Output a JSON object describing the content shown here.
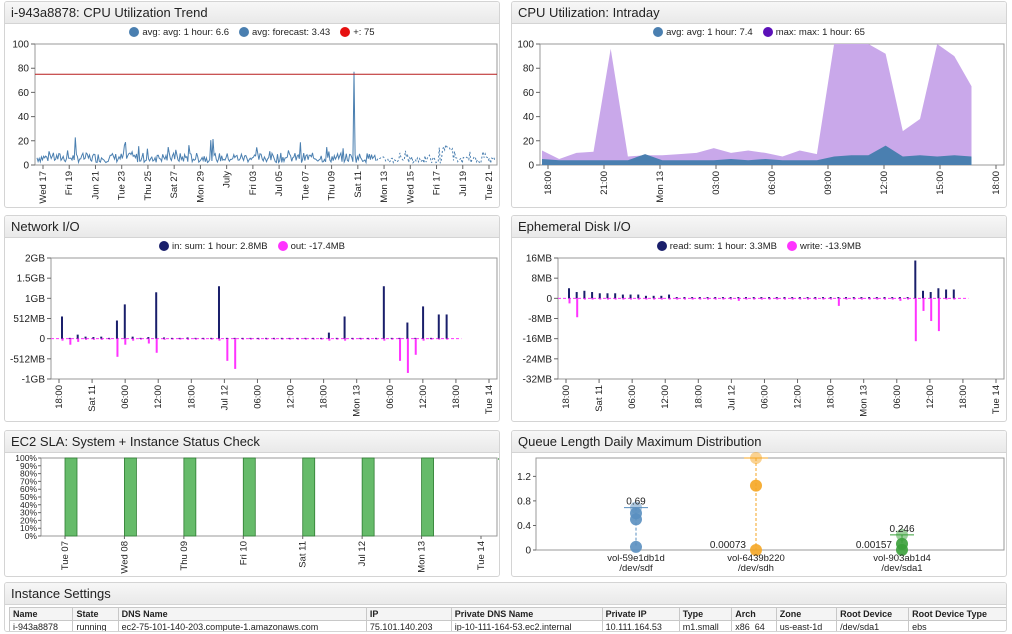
{
  "colors": {
    "blue": "#4a7fb0",
    "purple": "#5b10b8",
    "lilac": "#c9a8ea",
    "red": "#e61111",
    "navy": "#1a1f6b",
    "magenta": "#ff33ff",
    "green": "#66bb6a",
    "green_dark": "#2e7d32",
    "orange": "#f5a623",
    "steel": "#5a8fc0"
  },
  "panels": {
    "cpu_trend": {
      "title": "i-943a8878: CPU Utilization Trend",
      "legend": [
        {
          "label": "avg: avg: 1 hour: 6.6",
          "color": "#4a7fb0"
        },
        {
          "label": "avg: forecast: 3.43",
          "color": "#4a7fb0"
        },
        {
          "label": "+: 75",
          "color": "#e61111"
        }
      ],
      "threshold_badge": "75",
      "value_badge": "6.6"
    },
    "cpu_intraday": {
      "title": "CPU Utilization: Intraday",
      "legend": [
        {
          "label": "avg: avg: 1 hour: 7.4",
          "color": "#4a7fb0"
        },
        {
          "label": "max: max: 1 hour: 65",
          "color": "#5b10b8"
        }
      ]
    },
    "network": {
      "title": "Network I/O",
      "legend": [
        {
          "label": "in: sum: 1 hour: 2.8MB",
          "color": "#1a1f6b"
        },
        {
          "label": "out: -17.4MB",
          "color": "#ff33ff"
        }
      ]
    },
    "disk": {
      "title": "Ephemeral Disk I/O",
      "legend": [
        {
          "label": "read: sum: 1 hour: 3.3MB",
          "color": "#1a1f6b"
        },
        {
          "label": "write: -13.9MB",
          "color": "#ff33ff"
        }
      ]
    },
    "sla": {
      "title": "EC2 SLA: System + Instance Status Check",
      "badge": "100%"
    },
    "queue": {
      "title": "Queue Length Daily Maximum Distribution"
    },
    "instance": {
      "title": "Instance Settings",
      "columns": [
        "Name",
        "State",
        "DNS Name",
        "IP",
        "Private DNS Name",
        "Private IP",
        "Type",
        "Arch",
        "Zone",
        "Root Device",
        "Root Device Type"
      ],
      "rows": [
        [
          "i-943a8878",
          "running",
          "ec2-75-101-140-203.compute-1.amazonaws.com",
          "75.101.140.203",
          "ip-10-111-164-53.ec2.internal",
          "10.111.164.53",
          "m1.small",
          "x86_64",
          "us-east-1d",
          "/dev/sda1",
          "ebs"
        ]
      ]
    }
  },
  "chart_data": [
    {
      "type": "line",
      "title": "i-943a8878: CPU Utilization Trend",
      "x_ticks": [
        "Wed 17",
        "Fri 19",
        "Jun 21",
        "Tue 23",
        "Thu 25",
        "Sat 27",
        "Mon 29",
        "July",
        "Fri 03",
        "Jul 05",
        "Tue 07",
        "Thu 09",
        "Sat 11",
        "Mon 13",
        "Wed 15",
        "Fri 17",
        "Jul 19",
        "Tue 21"
      ],
      "y_ticks": [
        0,
        20,
        40,
        60,
        80,
        100
      ],
      "ylim": [
        0,
        100
      ],
      "threshold": 75,
      "series": [
        {
          "name": "avg: avg: 1 hour",
          "approx": "mostly 2-12 with spikes to ~25, single spike ~77 near Thu 09"
        },
        {
          "name": "avg: forecast",
          "approx": "dashed 2-10 from Thu 09 to Tue 21"
        }
      ]
    },
    {
      "type": "area",
      "title": "CPU Utilization: Intraday",
      "x_ticks": [
        "18:00",
        "21:00",
        "Mon 13",
        "03:00",
        "06:00",
        "09:00",
        "12:00",
        "15:00",
        "18:00"
      ],
      "y_ticks": [
        0,
        20,
        40,
        60,
        80,
        100
      ],
      "ylim": [
        0,
        100
      ],
      "series": [
        {
          "name": "max: max: 1 hour",
          "values": [
            12,
            5,
            10,
            11,
            96,
            7,
            8,
            8,
            9,
            10,
            14,
            10,
            12,
            10,
            7,
            12,
            9,
            100,
            100,
            100,
            92,
            28,
            38,
            100,
            90,
            65
          ]
        },
        {
          "name": "avg: avg: 1 hour",
          "values": [
            5,
            4,
            4,
            4,
            4,
            4,
            9,
            4,
            4,
            4,
            4,
            5,
            4,
            5,
            4,
            4,
            4,
            7,
            8,
            8,
            16,
            7,
            8,
            7,
            8,
            7
          ]
        }
      ]
    },
    {
      "type": "bar",
      "title": "Network I/O",
      "x_ticks": [
        "18:00",
        "Sat 11",
        "06:00",
        "12:00",
        "18:00",
        "Jul 12",
        "06:00",
        "12:00",
        "18:00",
        "Mon 13",
        "06:00",
        "12:00",
        "18:00",
        "Tue 14"
      ],
      "y_ticks": [
        "2GB",
        "1.5GB",
        "1GB",
        "512MB",
        "0",
        "-512MB",
        "-1GB"
      ],
      "ylim_gb": [
        -1,
        2
      ],
      "series": [
        {
          "name": "in",
          "values_gb": [
            0.55,
            0.02,
            0.1,
            0.05,
            0.04,
            0.05,
            0.02,
            0.45,
            0.85,
            0.05,
            0.02,
            0.04,
            1.15,
            0.03,
            0.02,
            0.02,
            0.03,
            0.02,
            0.02,
            0.02,
            1.3,
            0.02,
            0.02,
            0.02,
            0.02,
            0.02,
            0.02,
            0.02,
            0.02,
            0.02,
            0.02,
            0.02,
            0.02,
            0.02,
            0.15,
            0.02,
            0.55,
            0.02,
            0.02,
            0.02,
            0.02,
            1.3,
            0.02,
            0.02,
            0.4,
            0.02,
            0.8,
            0.02,
            0.6,
            0.6
          ]
        },
        {
          "name": "out",
          "values_gb": [
            -0.05,
            -0.15,
            -0.08,
            -0.03,
            -0.03,
            -0.03,
            -0.02,
            -0.45,
            -0.15,
            -0.05,
            -0.02,
            -0.12,
            -0.35,
            -0.03,
            -0.02,
            -0.02,
            -0.03,
            -0.02,
            -0.02,
            -0.02,
            -0.05,
            -0.55,
            -0.75,
            -0.02,
            -0.02,
            -0.02,
            -0.02,
            -0.02,
            -0.02,
            -0.02,
            -0.02,
            -0.02,
            -0.02,
            -0.02,
            -0.05,
            -0.02,
            -0.05,
            -0.02,
            -0.02,
            -0.02,
            -0.02,
            -0.05,
            -0.02,
            -0.55,
            -0.85,
            -0.4,
            -0.05,
            -0.02,
            -0.02,
            -0.02
          ]
        }
      ]
    },
    {
      "type": "bar",
      "title": "Ephemeral Disk I/O",
      "x_ticks": [
        "18:00",
        "Sat 11",
        "06:00",
        "12:00",
        "18:00",
        "Jul 12",
        "06:00",
        "12:00",
        "18:00",
        "Mon 13",
        "06:00",
        "12:00",
        "18:00",
        "Tue 14"
      ],
      "y_ticks": [
        "16MB",
        "8MB",
        "0",
        "-8MB",
        "-16MB",
        "-24MB",
        "-32MB"
      ],
      "ylim_mb": [
        -32,
        16
      ],
      "series": [
        {
          "name": "read",
          "values_mb": [
            4,
            2.5,
            3,
            2.5,
            2,
            2,
            2,
            1.5,
            1.5,
            1.5,
            1,
            1,
            1,
            1.5,
            0.5,
            0.5,
            0.5,
            0.5,
            0.5,
            0.5,
            0.5,
            0.5,
            0.5,
            0.5,
            0.5,
            0.5,
            0.5,
            0.5,
            0.5,
            0.5,
            0.5,
            0.5,
            0.5,
            0.5,
            0.5,
            0.5,
            0.5,
            0.5,
            0.5,
            0.5,
            0.5,
            0.5,
            0.5,
            0.5,
            0.5,
            15,
            3,
            2.5,
            4,
            3.5,
            3.5
          ]
        },
        {
          "name": "write",
          "values_mb": [
            -2,
            -7.5,
            -0.5,
            -0.5,
            -0.5,
            -0.5,
            -0.5,
            -0.5,
            -0.5,
            -0.5,
            -0.5,
            -0.5,
            -0.5,
            -0.5,
            -0.5,
            -0.5,
            -0.5,
            -0.5,
            -0.5,
            -0.5,
            -0.5,
            -0.5,
            -1,
            -0.5,
            -0.5,
            -0.5,
            -0.5,
            -0.5,
            -0.5,
            -0.5,
            -0.5,
            -0.5,
            -0.5,
            -0.5,
            -0.5,
            -3,
            -0.5,
            -0.5,
            -0.5,
            -0.5,
            -0.5,
            -0.5,
            -0.5,
            -1,
            -0.5,
            -17,
            -5,
            -9,
            -13,
            -0.5,
            -0.5
          ]
        }
      ]
    },
    {
      "type": "bar",
      "title": "EC2 SLA: System + Instance Status Check",
      "x_ticks": [
        "Tue 07",
        "Wed 08",
        "Thu 09",
        "Fri 10",
        "Sat 11",
        "Jul 12",
        "Mon 13",
        "Tue 14"
      ],
      "y_ticks": [
        "0%",
        "10%",
        "20%",
        "30%",
        "40%",
        "50%",
        "60%",
        "70%",
        "80%",
        "90%",
        "100%"
      ],
      "ylim": [
        0,
        100
      ],
      "series": [
        {
          "name": "status check",
          "values": [
            100,
            100,
            100,
            100,
            100,
            100,
            100
          ]
        }
      ]
    },
    {
      "type": "scatter",
      "title": "Queue Length Daily Maximum Distribution",
      "categories": [
        "vol-59e1db1d\n/dev/sdf",
        "vol-6439b220\n/dev/sdh",
        "vol-903ab1d4\n/dev/sda1"
      ],
      "y_ticks": [
        0,
        0.4,
        0.8,
        1.2
      ],
      "ylim": [
        0,
        1.5
      ],
      "series": [
        {
          "category": "vol-59e1db1d",
          "points": [
            0.69,
            0.6,
            0.5,
            0.05
          ],
          "max_label": "0.69"
        },
        {
          "category": "vol-6439b220",
          "points": [
            1.5,
            1.05,
            0.00073
          ],
          "min_label": "0.00073"
        },
        {
          "category": "vol-903ab1d4",
          "points": [
            0.246,
            0.1,
            0.00157
          ],
          "max_label": "0.246",
          "min_label": "0.00157"
        }
      ]
    }
  ]
}
